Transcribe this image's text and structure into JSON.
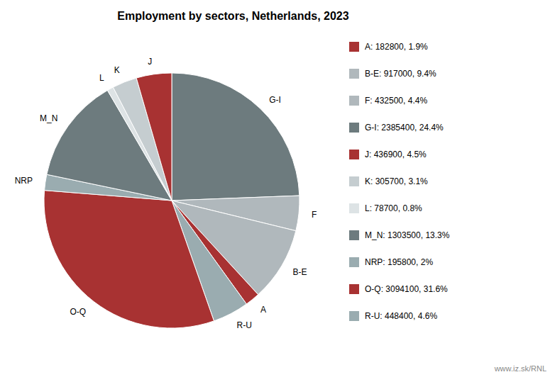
{
  "chart_data": {
    "type": "pie",
    "title": "Employment by sectors, Netherlands, 2023",
    "categories": [
      "G-I",
      "F",
      "B-E",
      "A",
      "R-U",
      "O-Q",
      "NRP",
      "M_N",
      "L",
      "K",
      "J"
    ],
    "values": [
      2385400,
      432500,
      917000,
      182800,
      448400,
      3094100,
      195800,
      1303500,
      78700,
      305700,
      436900
    ],
    "value_labels": [
      "G-I: 2385400, 24.4%",
      "F: 432500, 4.4%",
      "B-E: 917000, 9.4%",
      "A: 182800, 1.9%",
      "R-U: 448400, 4.6%",
      "O-Q: 3094100, 31.6%",
      "NRP: 195800, 2%",
      "M_N: 1303500, 13.3%",
      "L: 78700, 0.8%",
      "K: 305700, 3.1%",
      "J: 436900, 4.5%"
    ],
    "colors": [
      "#6d7b7e",
      "#b0b8bc",
      "#b0b8bc",
      "#a83232",
      "#9aacb0",
      "#a83232",
      "#9aacb0",
      "#6d7b7e",
      "#dde3e5",
      "#c5cdd0",
      "#a83232"
    ],
    "legend": "right",
    "annotations": [
      "www.iz.sk/RNL"
    ]
  }
}
